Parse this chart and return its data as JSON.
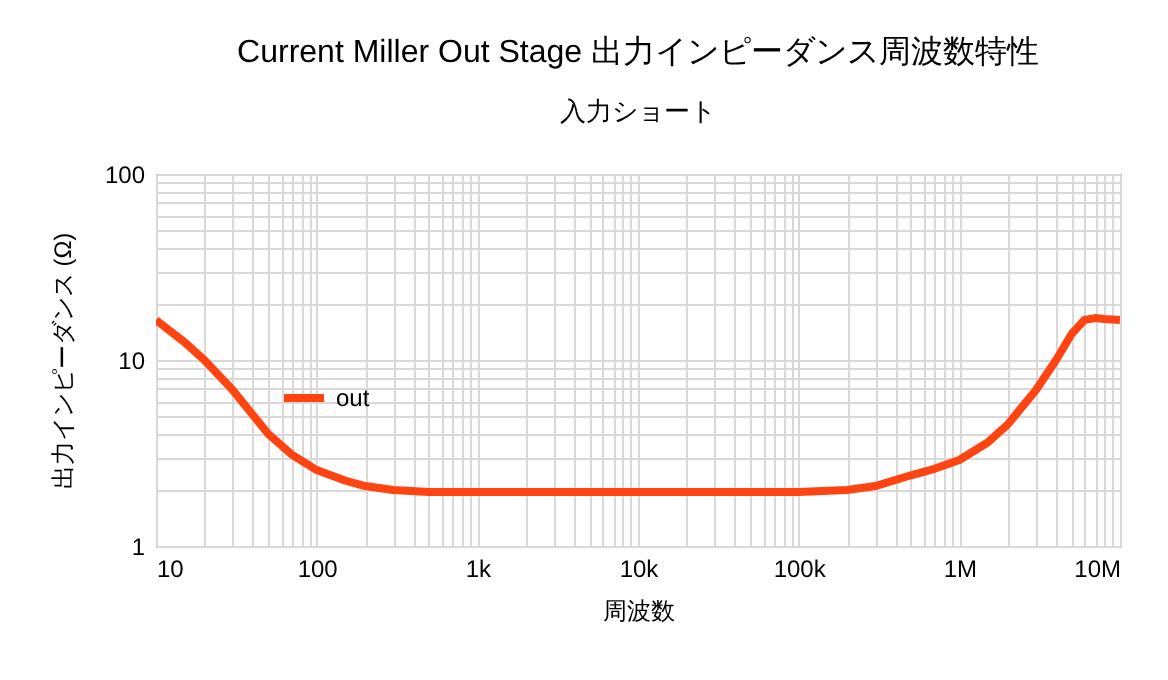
{
  "chart_data": {
    "type": "line",
    "title": "Current Miller Out Stage  出力インピーダンス周波数特性",
    "subtitle": "入力ショート",
    "xlabel": "周波数",
    "ylabel": "出力インピーダンス (Ω)",
    "x": [
      10,
      15,
      20,
      30,
      50,
      70,
      100,
      150,
      200,
      300,
      500,
      1000,
      10000,
      100000,
      200000,
      300000,
      500000,
      700000,
      1000000,
      1500000,
      2000000,
      3000000,
      4000000,
      5000000,
      6000000,
      7000000,
      8000000,
      10000000
    ],
    "series": [
      {
        "name": "out",
        "color": "#ff4411",
        "values": [
          16.4,
          12.5,
          10,
          6.9,
          4.0,
          3.1,
          2.56,
          2.25,
          2.1,
          2.0,
          1.95,
          1.95,
          1.95,
          1.95,
          2.0,
          2.1,
          2.4,
          2.6,
          2.9,
          3.6,
          4.5,
          6.9,
          10,
          13.8,
          16.4,
          16.8,
          16.6,
          16.4
        ]
      }
    ],
    "log": "xy",
    "xlim": [
      10,
      10000000
    ],
    "ylim": [
      1,
      100
    ],
    "xticks": [
      10,
      {
        "value": 20,
        "label": null
      },
      {
        "value": 30,
        "label": null
      },
      {
        "value": 40,
        "label": null
      },
      {
        "value": 50,
        "label": null
      },
      {
        "value": 60,
        "label": null
      },
      {
        "value": 70,
        "label": null
      },
      {
        "value": 80,
        "label": null
      },
      {
        "value": 90,
        "label": null
      },
      100,
      {
        "value": 200,
        "label": null
      },
      {
        "value": 300,
        "label": null
      },
      {
        "value": 400,
        "label": null
      },
      {
        "value": 500,
        "label": null
      },
      {
        "value": 600,
        "label": null
      },
      {
        "value": 700,
        "label": null
      },
      {
        "value": 800,
        "label": null
      },
      {
        "value": 900,
        "label": null
      },
      {
        "value": 1000,
        "label": "1k"
      },
      {
        "value": 2000,
        "label": null
      },
      {
        "value": 3000,
        "label": null
      },
      {
        "value": 4000,
        "label": null
      },
      {
        "value": 5000,
        "label": null
      },
      {
        "value": 6000,
        "label": null
      },
      {
        "value": 7000,
        "label": null
      },
      {
        "value": 8000,
        "label": null
      },
      {
        "value": 9000,
        "label": null
      },
      {
        "value": 10000,
        "label": "10k"
      },
      {
        "value": 20000,
        "label": null
      },
      {
        "value": 30000,
        "label": null
      },
      {
        "value": 40000,
        "label": null
      },
      {
        "value": 50000,
        "label": null
      },
      {
        "value": 60000,
        "label": null
      },
      {
        "value": 70000,
        "label": null
      },
      {
        "value": 80000,
        "label": null
      },
      {
        "value": 90000,
        "label": null
      },
      {
        "value": 100000,
        "label": "100k"
      },
      {
        "value": 200000,
        "label": null
      },
      {
        "value": 300000,
        "label": null
      },
      {
        "value": 400000,
        "label": null
      },
      {
        "value": 500000,
        "label": null
      },
      {
        "value": 600000,
        "label": null
      },
      {
        "value": 700000,
        "label": null
      },
      {
        "value": 800000,
        "label": null
      },
      {
        "value": 900000,
        "label": null
      },
      {
        "value": 1000000,
        "label": "1M"
      },
      {
        "value": 2000000,
        "label": null
      },
      {
        "value": 3000000,
        "label": null
      },
      {
        "value": 4000000,
        "label": null
      },
      {
        "value": 5000000,
        "label": null
      },
      {
        "value": 6000000,
        "label": null
      },
      {
        "value": 7000000,
        "label": null
      },
      {
        "value": 8000000,
        "label": null
      },
      {
        "value": 9000000,
        "label": null
      },
      {
        "value": 10000000,
        "label": "10M"
      }
    ],
    "yticks": [
      1,
      {
        "value": 2,
        "label": null
      },
      {
        "value": 3,
        "label": null
      },
      {
        "value": 4,
        "label": null
      },
      {
        "value": 5,
        "label": null
      },
      {
        "value": 6,
        "label": null
      },
      {
        "value": 7,
        "label": null
      },
      {
        "value": 8,
        "label": null
      },
      {
        "value": 9,
        "label": null
      },
      10,
      {
        "value": 20,
        "label": null
      },
      {
        "value": 30,
        "label": null
      },
      {
        "value": 40,
        "label": null
      },
      {
        "value": 50,
        "label": null
      },
      {
        "value": 60,
        "label": null
      },
      {
        "value": 70,
        "label": null
      },
      {
        "value": 80,
        "label": null
      },
      {
        "value": 90,
        "label": null
      },
      100
    ],
    "grid": true,
    "legend": "left",
    "marker": "none",
    "line_style": "solid"
  }
}
